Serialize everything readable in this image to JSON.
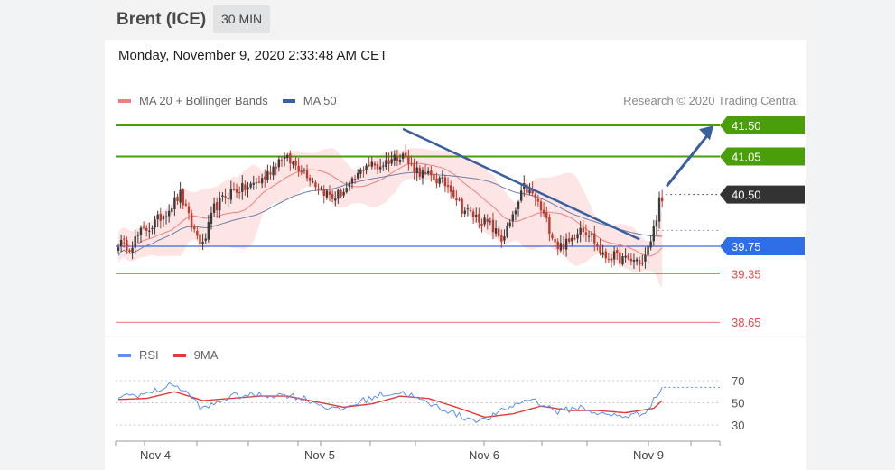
{
  "header": {
    "title": "Brent (ICE)",
    "interval": "30 MIN"
  },
  "timestamp": "Monday, November 9, 2020 2:33:48 AM CET",
  "legend": {
    "ma20_label": "MA 20 + Bollinger Bands",
    "ma50_label": "MA 50",
    "rsi_label": "RSI",
    "rsi_ma_label": "9MA"
  },
  "credit": "Research © 2020 Trading Central",
  "colors": {
    "up": "#3b3b3b",
    "down": "#c0392b",
    "green": "#4a9e08",
    "blue": "#2e6ee6",
    "red_level": "#e84b4b",
    "band": "#fde0e0",
    "ma20": "#f08080",
    "ma50": "#6e7fa8",
    "trend": "#3a5f9e",
    "current": "#333333",
    "rsi": "#5b8ff0",
    "rsi_ma": "#e53935"
  },
  "levels": [
    {
      "value": 41.5,
      "label": "41.50",
      "style": "green-tag"
    },
    {
      "value": 41.05,
      "label": "41.05",
      "style": "green-tag"
    },
    {
      "value": 40.5,
      "label": "40.50",
      "style": "dark-tag"
    },
    {
      "value": 39.75,
      "label": "39.75",
      "style": "blue-tag"
    },
    {
      "value": 39.35,
      "label": "39.35",
      "style": "red-text"
    },
    {
      "value": 38.65,
      "label": "38.65",
      "style": "red-text"
    }
  ],
  "x_ticks": [
    "Nov 4",
    "Nov 5",
    "Nov 6",
    "Nov 9"
  ],
  "rsi_ticks": [
    "70",
    "50",
    "30"
  ],
  "chart_data": {
    "type": "candlestick",
    "interval": "30 MIN",
    "indicators": [
      "MA 20 + Bollinger Bands",
      "MA 50"
    ],
    "price_anchor": [
      [
        0,
        39.8
      ],
      [
        4,
        39.75
      ],
      [
        8,
        39.95
      ],
      [
        12,
        40.05
      ],
      [
        18,
        40.3
      ],
      [
        22,
        40.5
      ],
      [
        26,
        40.05
      ],
      [
        30,
        39.75
      ],
      [
        34,
        40.3
      ],
      [
        40,
        40.55
      ],
      [
        46,
        40.6
      ],
      [
        52,
        40.75
      ],
      [
        58,
        41.05
      ],
      [
        62,
        40.95
      ],
      [
        66,
        40.85
      ],
      [
        70,
        40.65
      ],
      [
        76,
        40.45
      ],
      [
        82,
        40.6
      ],
      [
        88,
        40.95
      ],
      [
        92,
        40.9
      ],
      [
        96,
        41.0
      ],
      [
        101,
        41.1
      ],
      [
        103,
        40.95
      ],
      [
        108,
        40.8
      ],
      [
        114,
        40.7
      ],
      [
        118,
        40.6
      ],
      [
        122,
        40.3
      ],
      [
        128,
        40.15
      ],
      [
        132,
        40.05
      ],
      [
        136,
        39.85
      ],
      [
        140,
        40.15
      ],
      [
        144,
        40.6
      ],
      [
        148,
        40.45
      ],
      [
        152,
        40.1
      ],
      [
        156,
        39.75
      ],
      [
        160,
        39.8
      ],
      [
        164,
        40.05
      ],
      [
        168,
        39.9
      ],
      [
        172,
        39.6
      ],
      [
        176,
        39.6
      ],
      [
        180,
        39.55
      ],
      [
        184,
        39.55
      ],
      [
        186,
        39.5
      ],
      [
        188,
        39.7
      ],
      [
        190,
        40.0
      ],
      [
        192,
        40.4
      ],
      [
        193,
        40.7
      ]
    ],
    "last_close": 40.4,
    "target": 41.5,
    "trendline": [
      [
        101,
        41.45
      ],
      [
        185,
        39.85
      ]
    ],
    "rsi_anchor": [
      [
        0,
        56
      ],
      [
        10,
        58
      ],
      [
        20,
        67
      ],
      [
        26,
        55
      ],
      [
        30,
        44
      ],
      [
        40,
        56
      ],
      [
        50,
        57
      ],
      [
        60,
        57
      ],
      [
        66,
        54
      ],
      [
        72,
        48
      ],
      [
        78,
        43
      ],
      [
        88,
        53
      ],
      [
        94,
        58
      ],
      [
        102,
        59
      ],
      [
        108,
        51
      ],
      [
        116,
        44
      ],
      [
        122,
        37
      ],
      [
        130,
        34
      ],
      [
        138,
        45
      ],
      [
        146,
        54
      ],
      [
        156,
        42
      ],
      [
        164,
        46
      ],
      [
        172,
        39
      ],
      [
        180,
        38
      ],
      [
        186,
        40
      ],
      [
        190,
        52
      ],
      [
        193,
        64
      ]
    ],
    "rsi_ma_anchor": [
      [
        0,
        53
      ],
      [
        10,
        54
      ],
      [
        20,
        60
      ],
      [
        30,
        52
      ],
      [
        40,
        54
      ],
      [
        50,
        56
      ],
      [
        60,
        56
      ],
      [
        70,
        51
      ],
      [
        80,
        46
      ],
      [
        90,
        49
      ],
      [
        100,
        56
      ],
      [
        110,
        54
      ],
      [
        120,
        46
      ],
      [
        130,
        37
      ],
      [
        140,
        40
      ],
      [
        150,
        47
      ],
      [
        160,
        43
      ],
      [
        170,
        43
      ],
      [
        180,
        41
      ],
      [
        190,
        45
      ],
      [
        193,
        52
      ]
    ]
  }
}
